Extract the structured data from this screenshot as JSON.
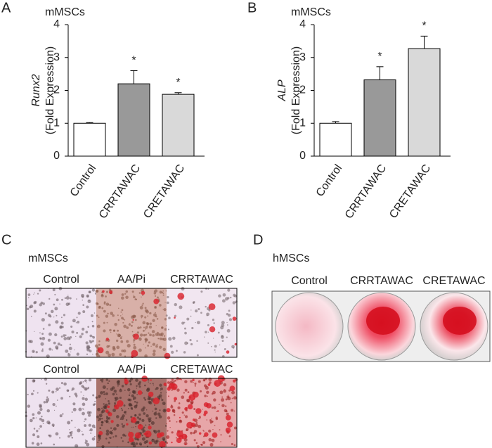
{
  "chart_data": [
    {
      "type": "bar",
      "panel": "A",
      "title": "mMSCs",
      "ylabel": "Runx2",
      "ylabel_unit": "(Fold Expression)",
      "categories": [
        "Control",
        "CRRTAWAC",
        "CRETAWAC"
      ],
      "values": [
        1.0,
        2.2,
        1.88
      ],
      "errors": [
        0.02,
        0.4,
        0.05
      ],
      "colors": [
        "#ffffff",
        "#999999",
        "#d9d9d9"
      ],
      "annotations": [
        null,
        "*",
        "*"
      ],
      "ylim": [
        0,
        4
      ],
      "yticks": [
        0,
        1,
        2,
        3,
        4
      ]
    },
    {
      "type": "bar",
      "panel": "B",
      "title": "mMSCs",
      "ylabel": "ALP",
      "ylabel_unit": "(Fold Expression)",
      "categories": [
        "Control",
        "CRRTAWAC",
        "CRETAWAC"
      ],
      "values": [
        1.0,
        2.32,
        3.27
      ],
      "errors": [
        0.05,
        0.4,
        0.38
      ],
      "colors": [
        "#ffffff",
        "#999999",
        "#d9d9d9"
      ],
      "annotations": [
        null,
        "*",
        "*"
      ],
      "ylim": [
        0,
        4
      ],
      "yticks": [
        0,
        1,
        2,
        3,
        4
      ]
    }
  ],
  "panel_c": {
    "letter": "C",
    "title": "mMSCs",
    "rows": [
      [
        "Control",
        "AA/Pi",
        "CRRTAWAC"
      ],
      [
        "Control",
        "AA/Pi",
        "CRETAWAC"
      ]
    ]
  },
  "panel_d": {
    "letter": "D",
    "title": "hMSCs",
    "labels": [
      "Control",
      "CRRTAWAC",
      "CRETAWAC"
    ]
  }
}
